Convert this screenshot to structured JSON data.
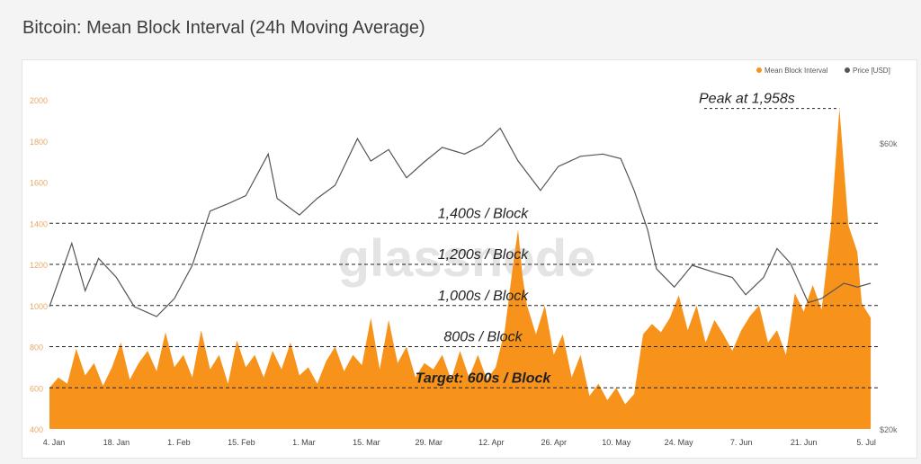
{
  "page": {
    "title": "Bitcoin: Mean Block Interval (24h Moving Average)"
  },
  "colors": {
    "interval": "#f7931a",
    "price": "#555555",
    "left_axis_text": "#e8a868",
    "right_axis_text": "#666666",
    "annotation": "#222222"
  },
  "chart_data": {
    "type": "area",
    "title": "Bitcoin: Mean Block Interval (24h Moving Average)",
    "legend": {
      "position": "top-right",
      "entries": [
        "Mean Block Interval",
        "Price [USD]"
      ]
    },
    "watermark": "glassnode",
    "x": {
      "range": [
        "2021-01-03",
        "2021-07-08"
      ],
      "ticks": [
        {
          "date": "2021-01-04",
          "label": "4. Jan"
        },
        {
          "date": "2021-01-18",
          "label": "18. Jan"
        },
        {
          "date": "2021-02-01",
          "label": "1. Feb"
        },
        {
          "date": "2021-02-15",
          "label": "15. Feb"
        },
        {
          "date": "2021-03-01",
          "label": "1. Mar"
        },
        {
          "date": "2021-03-15",
          "label": "15. Mar"
        },
        {
          "date": "2021-03-29",
          "label": "29. Mar"
        },
        {
          "date": "2021-04-12",
          "label": "12. Apr"
        },
        {
          "date": "2021-04-26",
          "label": "26. Apr"
        },
        {
          "date": "2021-05-10",
          "label": "10. May"
        },
        {
          "date": "2021-05-24",
          "label": "24. May"
        },
        {
          "date": "2021-06-07",
          "label": "7. Jun"
        },
        {
          "date": "2021-06-21",
          "label": "21. Jun"
        },
        {
          "date": "2021-07-05",
          "label": "5. Jul"
        }
      ]
    },
    "y_left": {
      "name": "Mean Block Interval",
      "unit": "s",
      "range": [
        400,
        2000
      ],
      "ticks": [
        "400",
        "600",
        "800",
        "1000",
        "1200",
        "1400",
        "1600",
        "1800",
        "2000"
      ]
    },
    "y_right": {
      "name": "Price [USD]",
      "scale": "log",
      "range": [
        20000,
        60000
      ],
      "ticks": [
        {
          "value": 20000,
          "label": "$20k"
        },
        {
          "value": 60000,
          "label": "$60k"
        }
      ]
    },
    "series": [
      {
        "name": "Mean Block Interval",
        "type": "area",
        "points": [
          [
            "2021-01-03",
            600
          ],
          [
            "2021-01-05",
            650
          ],
          [
            "2021-01-07",
            620
          ],
          [
            "2021-01-09",
            790
          ],
          [
            "2021-01-11",
            660
          ],
          [
            "2021-01-13",
            720
          ],
          [
            "2021-01-15",
            610
          ],
          [
            "2021-01-17",
            700
          ],
          [
            "2021-01-19",
            820
          ],
          [
            "2021-01-21",
            640
          ],
          [
            "2021-01-23",
            720
          ],
          [
            "2021-01-25",
            780
          ],
          [
            "2021-01-27",
            680
          ],
          [
            "2021-01-29",
            870
          ],
          [
            "2021-01-31",
            700
          ],
          [
            "2021-02-02",
            760
          ],
          [
            "2021-02-04",
            650
          ],
          [
            "2021-02-06",
            880
          ],
          [
            "2021-02-08",
            690
          ],
          [
            "2021-02-10",
            760
          ],
          [
            "2021-02-12",
            620
          ],
          [
            "2021-02-14",
            830
          ],
          [
            "2021-02-16",
            700
          ],
          [
            "2021-02-18",
            760
          ],
          [
            "2021-02-20",
            650
          ],
          [
            "2021-02-22",
            780
          ],
          [
            "2021-02-24",
            690
          ],
          [
            "2021-02-26",
            820
          ],
          [
            "2021-02-28",
            660
          ],
          [
            "2021-03-02",
            700
          ],
          [
            "2021-03-04",
            620
          ],
          [
            "2021-03-06",
            730
          ],
          [
            "2021-03-08",
            800
          ],
          [
            "2021-03-10",
            680
          ],
          [
            "2021-03-12",
            760
          ],
          [
            "2021-03-14",
            710
          ],
          [
            "2021-03-16",
            940
          ],
          [
            "2021-03-18",
            690
          ],
          [
            "2021-03-20",
            930
          ],
          [
            "2021-03-22",
            720
          ],
          [
            "2021-03-24",
            800
          ],
          [
            "2021-03-26",
            650
          ],
          [
            "2021-03-28",
            720
          ],
          [
            "2021-03-30",
            690
          ],
          [
            "2021-04-01",
            760
          ],
          [
            "2021-04-03",
            640
          ],
          [
            "2021-04-05",
            780
          ],
          [
            "2021-04-07",
            650
          ],
          [
            "2021-04-09",
            760
          ],
          [
            "2021-04-11",
            640
          ],
          [
            "2021-04-13",
            700
          ],
          [
            "2021-04-15",
            880
          ],
          [
            "2021-04-17",
            1220
          ],
          [
            "2021-04-18",
            1370
          ],
          [
            "2021-04-19",
            1140
          ],
          [
            "2021-04-20",
            1000
          ],
          [
            "2021-04-22",
            860
          ],
          [
            "2021-04-24",
            1000
          ],
          [
            "2021-04-26",
            760
          ],
          [
            "2021-04-28",
            860
          ],
          [
            "2021-04-30",
            650
          ],
          [
            "2021-05-02",
            760
          ],
          [
            "2021-05-04",
            560
          ],
          [
            "2021-05-06",
            620
          ],
          [
            "2021-05-08",
            540
          ],
          [
            "2021-05-10",
            600
          ],
          [
            "2021-05-12",
            520
          ],
          [
            "2021-05-14",
            570
          ],
          [
            "2021-05-16",
            860
          ],
          [
            "2021-05-18",
            910
          ],
          [
            "2021-05-20",
            870
          ],
          [
            "2021-05-22",
            940
          ],
          [
            "2021-05-24",
            1050
          ],
          [
            "2021-05-26",
            880
          ],
          [
            "2021-05-28",
            1000
          ],
          [
            "2021-05-30",
            820
          ],
          [
            "2021-06-01",
            930
          ],
          [
            "2021-06-03",
            860
          ],
          [
            "2021-06-05",
            780
          ],
          [
            "2021-06-07",
            880
          ],
          [
            "2021-06-09",
            950
          ],
          [
            "2021-06-11",
            1000
          ],
          [
            "2021-06-13",
            820
          ],
          [
            "2021-06-15",
            880
          ],
          [
            "2021-06-17",
            760
          ],
          [
            "2021-06-19",
            1060
          ],
          [
            "2021-06-21",
            970
          ],
          [
            "2021-06-23",
            1100
          ],
          [
            "2021-06-25",
            980
          ],
          [
            "2021-06-27",
            1360
          ],
          [
            "2021-06-29",
            1958
          ],
          [
            "2021-07-01",
            1390
          ],
          [
            "2021-07-03",
            1260
          ],
          [
            "2021-07-04",
            1010
          ],
          [
            "2021-07-06",
            940
          ]
        ]
      },
      {
        "name": "Price [USD]",
        "type": "line",
        "points": [
          [
            "2021-01-03",
            32000
          ],
          [
            "2021-01-08",
            40800
          ],
          [
            "2021-01-11",
            34000
          ],
          [
            "2021-01-14",
            38500
          ],
          [
            "2021-01-18",
            35800
          ],
          [
            "2021-01-22",
            32000
          ],
          [
            "2021-01-27",
            30800
          ],
          [
            "2021-01-31",
            33000
          ],
          [
            "2021-02-04",
            37500
          ],
          [
            "2021-02-08",
            46200
          ],
          [
            "2021-02-12",
            47500
          ],
          [
            "2021-02-16",
            49000
          ],
          [
            "2021-02-21",
            57500
          ],
          [
            "2021-02-23",
            48500
          ],
          [
            "2021-02-28",
            45500
          ],
          [
            "2021-03-04",
            48500
          ],
          [
            "2021-03-08",
            51000
          ],
          [
            "2021-03-13",
            61000
          ],
          [
            "2021-03-16",
            56000
          ],
          [
            "2021-03-20",
            58500
          ],
          [
            "2021-03-24",
            52500
          ],
          [
            "2021-03-28",
            55800
          ],
          [
            "2021-04-01",
            59000
          ],
          [
            "2021-04-06",
            57500
          ],
          [
            "2021-04-10",
            59500
          ],
          [
            "2021-04-14",
            63500
          ],
          [
            "2021-04-18",
            56000
          ],
          [
            "2021-04-23",
            50000
          ],
          [
            "2021-04-27",
            54800
          ],
          [
            "2021-05-02",
            57000
          ],
          [
            "2021-05-07",
            57500
          ],
          [
            "2021-05-11",
            56500
          ],
          [
            "2021-05-14",
            50000
          ],
          [
            "2021-05-17",
            43000
          ],
          [
            "2021-05-19",
            37000
          ],
          [
            "2021-05-23",
            34500
          ],
          [
            "2021-05-27",
            37500
          ],
          [
            "2021-06-01",
            36500
          ],
          [
            "2021-06-05",
            35800
          ],
          [
            "2021-06-08",
            33500
          ],
          [
            "2021-06-12",
            35800
          ],
          [
            "2021-06-15",
            40000
          ],
          [
            "2021-06-18",
            37800
          ],
          [
            "2021-06-22",
            32500
          ],
          [
            "2021-06-25",
            33000
          ],
          [
            "2021-06-30",
            35000
          ],
          [
            "2021-07-03",
            34500
          ],
          [
            "2021-07-06",
            35000
          ]
        ]
      }
    ],
    "reference_lines": [
      {
        "y": 1400,
        "label": "1,400s / Block"
      },
      {
        "y": 1200,
        "label": "1,200s / Block"
      },
      {
        "y": 1000,
        "label": "1,000s / Block"
      },
      {
        "y": 800,
        "label": "800s / Block"
      },
      {
        "y": 600,
        "label": "Target: 600s / Block"
      }
    ],
    "annotations": [
      {
        "date": "2021-06-29",
        "y": 1958,
        "label": "Peak at 1,958s"
      }
    ]
  }
}
